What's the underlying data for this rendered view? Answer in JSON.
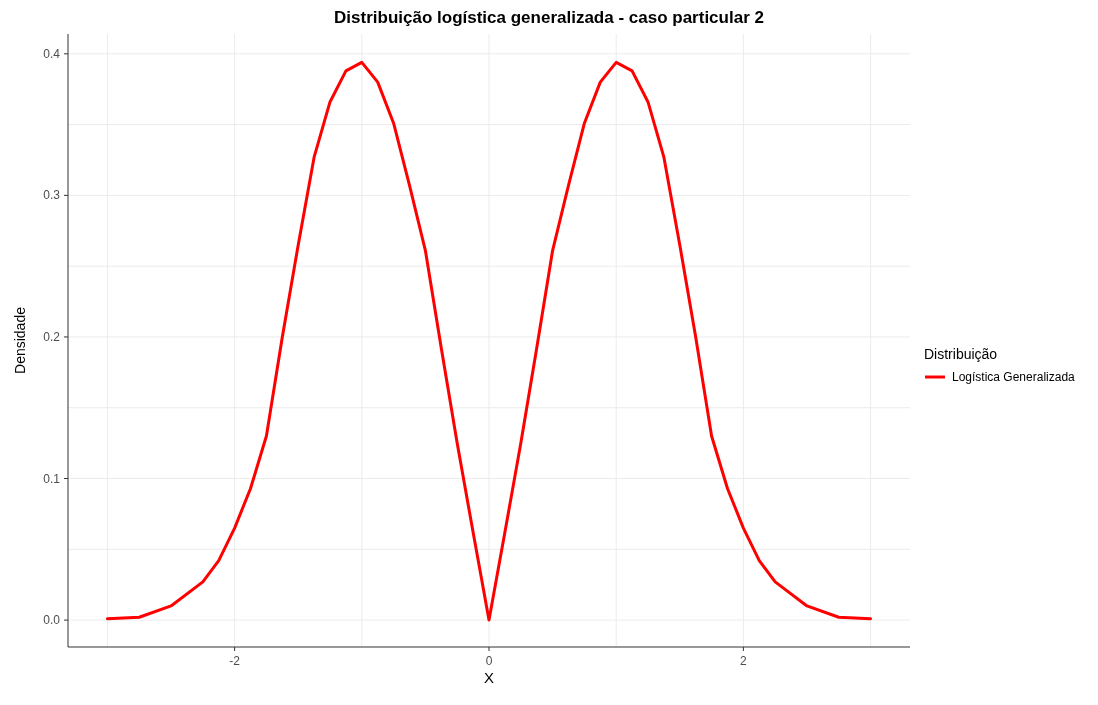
{
  "chart_data": {
    "type": "line",
    "title": "Distribuição logística generalizada - caso particular 2",
    "xlabel": "X",
    "ylabel": "Densidade",
    "legend_title": "Distribuição",
    "legend": "right",
    "grid": true,
    "line_style": "solid",
    "marker": "none",
    "xlim": [
      -3.31,
      3.31
    ],
    "ylim": [
      -0.019,
      0.414
    ],
    "xticks": [
      {
        "value": -3,
        "label": null
      },
      {
        "value": -2,
        "label": "-2"
      },
      {
        "value": -1,
        "label": null
      },
      {
        "value": 0,
        "label": "0"
      },
      {
        "value": 1,
        "label": null
      },
      {
        "value": 2,
        "label": "2"
      },
      {
        "value": 3,
        "label": null
      }
    ],
    "yticks": [
      {
        "value": 0,
        "label": "0.0"
      },
      {
        "value": 0.05,
        "label": null
      },
      {
        "value": 0.1,
        "label": "0.1"
      },
      {
        "value": 0.15,
        "label": null
      },
      {
        "value": 0.2,
        "label": "0.2"
      },
      {
        "value": 0.25,
        "label": null
      },
      {
        "value": 0.3,
        "label": "0.3"
      },
      {
        "value": 0.35,
        "label": null
      },
      {
        "value": 0.4,
        "label": "0.4"
      }
    ],
    "series": [
      {
        "name": "Logística Generalizada",
        "color": "#ff0000",
        "x": [
          -3,
          -2.75,
          -2.5,
          -2.25,
          -2.125,
          -2,
          -1.875,
          -1.75,
          -1.625,
          -1.5,
          -1.375,
          -1.25,
          -1.125,
          -1,
          -0.875,
          -0.75,
          -0.625,
          -0.5,
          -0.375,
          -0.25,
          -0.125,
          0,
          0.125,
          0.25,
          0.375,
          0.5,
          0.625,
          0.75,
          0.875,
          1,
          1.125,
          1.25,
          1.375,
          1.5,
          1.625,
          1.75,
          1.875,
          2,
          2.125,
          2.25,
          2.5,
          2.75,
          3
        ],
        "values": [
          0.001,
          0.002,
          0.01,
          0.027,
          0.042,
          0.065,
          0.093,
          0.13,
          0.2,
          0.265,
          0.327,
          0.366,
          0.388,
          0.394,
          0.38,
          0.351,
          0.307,
          0.261,
          0.192,
          0.125,
          0.062,
          0,
          0.062,
          0.125,
          0.192,
          0.261,
          0.307,
          0.351,
          0.38,
          0.394,
          0.388,
          0.366,
          0.327,
          0.265,
          0.2,
          0.13,
          0.093,
          0.065,
          0.042,
          0.027,
          0.01,
          0.002,
          0.001
        ]
      }
    ]
  }
}
